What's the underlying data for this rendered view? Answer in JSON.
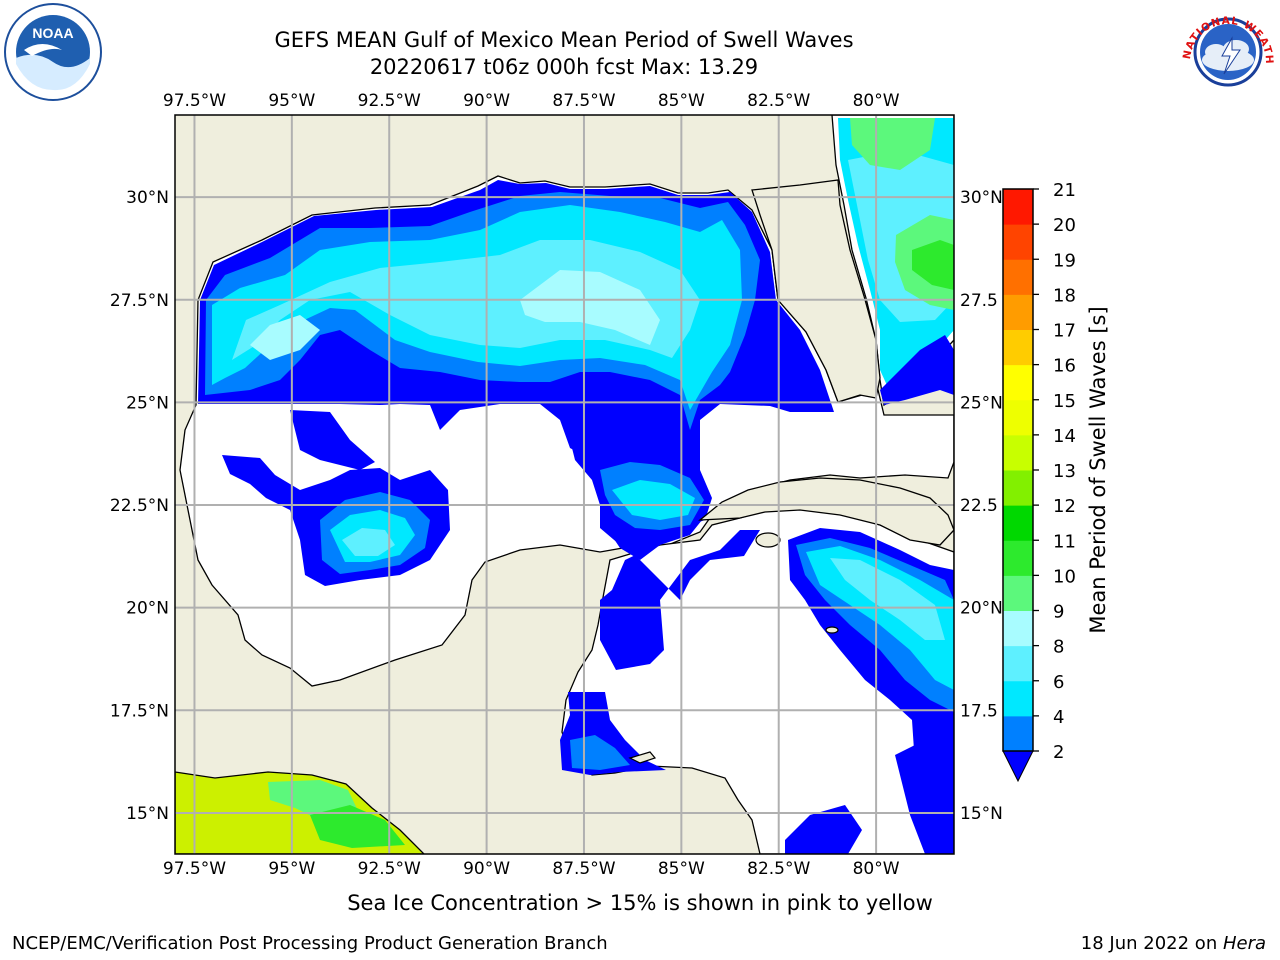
{
  "title": {
    "line1": "GEFS MEAN Gulf of Mexico Mean Period of Swell Waves",
    "line2": "20220617 t06z 000h fcst   Max: 13.29"
  },
  "map": {
    "lon_ticks": [
      "97.5°W",
      "95°W",
      "92.5°W",
      "90°W",
      "87.5°W",
      "85°W",
      "82.5°W",
      "80°W"
    ],
    "lat_ticks_left": [
      "30°N",
      "27.5°N",
      "25°N",
      "22.5°N",
      "20°N",
      "17.5°N",
      "15°N"
    ],
    "lat_ticks_right": [
      "30°N",
      "27.5",
      "25°N",
      "22.5",
      "20°N",
      "17.5",
      "15°N"
    ],
    "lon_range": [
      -98,
      -78
    ],
    "lat_range": [
      14,
      32
    ],
    "gridlines": true,
    "colors": {
      "land": "#efeedd",
      "ocean_nodata": "#ffffff",
      "grid": "#b0b0b0",
      "coast": "#000000"
    }
  },
  "colorbar": {
    "title": "Mean Period of Swell Waves [s]",
    "ticks": [
      "2",
      "4",
      "6",
      "8",
      "9",
      "10",
      "11",
      "12",
      "13",
      "14",
      "15",
      "16",
      "17",
      "18",
      "19",
      "20",
      "21"
    ],
    "colors": [
      "#0000ff",
      "#0080ff",
      "#00e8ff",
      "#5ef0ff",
      "#a8fcff",
      "#5cf87c",
      "#2dea2d",
      "#00d800",
      "#82f000",
      "#c8ff00",
      "#eeff00",
      "#ffff00",
      "#ffcc00",
      "#ff9c00",
      "#ff7000",
      "#ff4400",
      "#ff1800",
      "#ff0000"
    ],
    "extend": "min"
  },
  "note": "Sea Ice Concentration > 15% is shown in pink to yellow",
  "footer": {
    "left": "NCEP/EMC/Verification Post Processing Product Generation Branch",
    "date": "18 Jun 2022 on ",
    "machine": "Hera"
  },
  "logos": {
    "left": "NOAA",
    "right": "NATIONAL WEATHER SERVICE"
  }
}
